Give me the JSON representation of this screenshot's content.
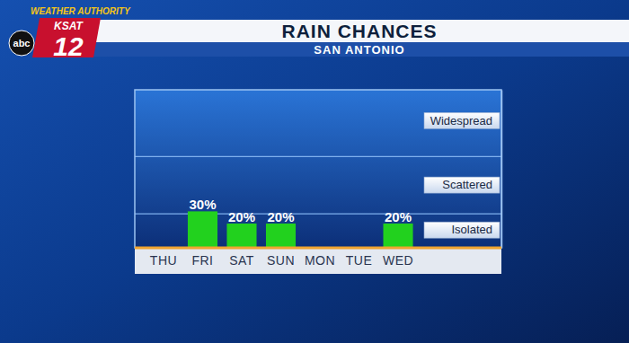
{
  "header": {
    "brand": "WEATHER AUTHORITY",
    "station": "KSAT",
    "channel": "12",
    "network": "abc"
  },
  "chart_data": {
    "type": "bar",
    "title": "RAIN CHANCES",
    "subtitle": "SAN ANTONIO",
    "categories": [
      "THU",
      "FRI",
      "SAT",
      "SUN",
      "MON",
      "TUE",
      "WED"
    ],
    "values": [
      null,
      30,
      20,
      20,
      null,
      null,
      20
    ],
    "value_labels": [
      null,
      "30%",
      "20%",
      "20%",
      null,
      null,
      "20%"
    ],
    "color": "#22d11e",
    "ylim": [
      0,
      130
    ],
    "yticks": [
      {
        "value": 15,
        "label": "Isolated"
      },
      {
        "value": 52,
        "label": "Scattered"
      },
      {
        "value": 105,
        "label": "Widespread"
      }
    ],
    "band_edges": [
      28,
      75
    ],
    "grid": false,
    "data_labels": true
  }
}
